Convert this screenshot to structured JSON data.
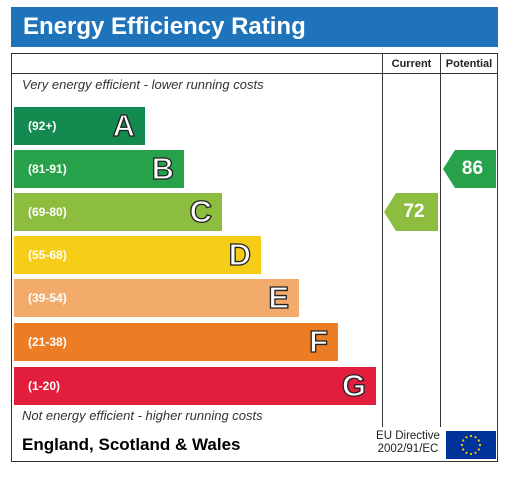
{
  "title": "Energy Efficiency Rating",
  "columns": {
    "current": "Current",
    "potential": "Potential"
  },
  "notes": {
    "top": "Very energy efficient - lower running costs",
    "bottom": "Not energy efficient - higher running costs"
  },
  "bands": [
    {
      "range": "(92+)",
      "letter": "A",
      "color": "#138a4f"
    },
    {
      "range": "(81-91)",
      "letter": "B",
      "color": "#27a24a"
    },
    {
      "range": "(69-80)",
      "letter": "C",
      "color": "#8cbd3f"
    },
    {
      "range": "(55-68)",
      "letter": "D",
      "color": "#f5cd16"
    },
    {
      "range": "(39-54)",
      "letter": "E",
      "color": "#f2ab6b"
    },
    {
      "range": "(21-38)",
      "letter": "F",
      "color": "#ec7d25"
    },
    {
      "range": "(1-20)",
      "letter": "G",
      "color": "#e31d3c"
    }
  ],
  "current": {
    "value": "72",
    "band": "C",
    "color": "#8cbd3f"
  },
  "potential": {
    "value": "86",
    "band": "B",
    "color": "#27a24a"
  },
  "footer": {
    "region": "England, Scotland & Wales",
    "directive_line1": "EU Directive",
    "directive_line2": "2002/91/EC"
  },
  "colors": {
    "title_bar": "#1f73bb",
    "flag_blue": "#003399",
    "flag_star": "#ffcc00"
  },
  "icons": {
    "flag": "eu-flag-icon"
  }
}
